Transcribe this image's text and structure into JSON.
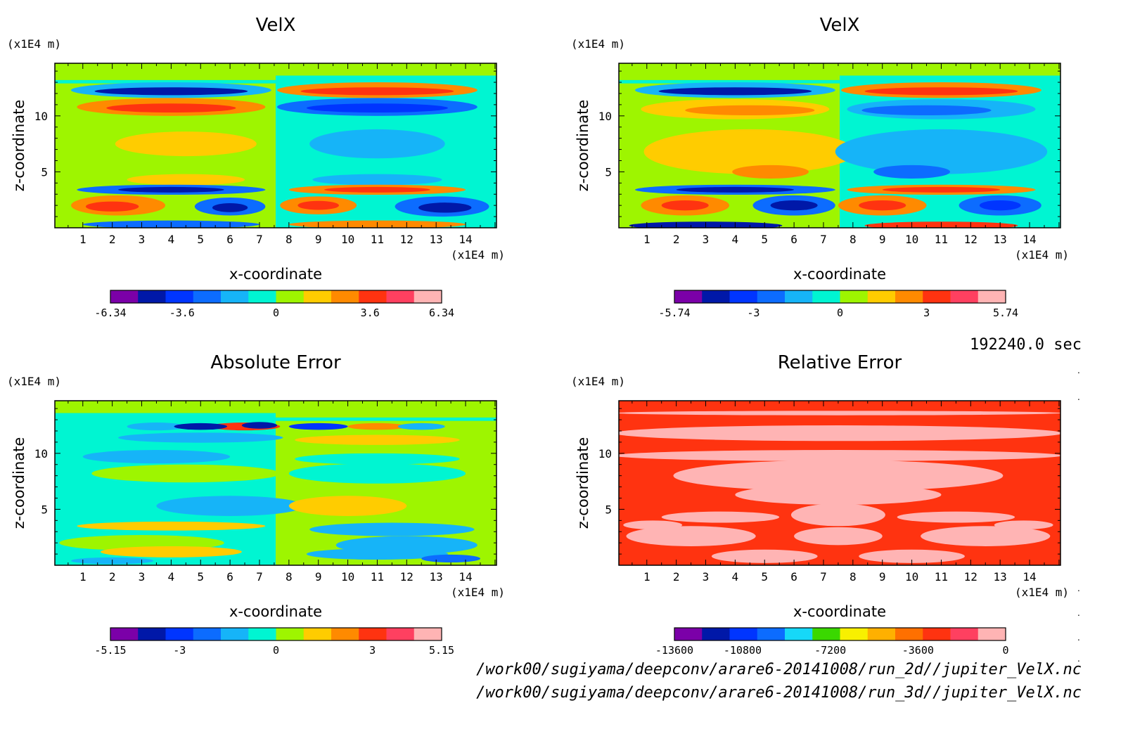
{
  "time_label": "192240.0 sec",
  "files": [
    "/work00/sugiyama/deepconv/arare6-20141008/run_2d//jupiter_VelX.nc",
    "/work00/sugiyama/deepconv/arare6-20141008/run_3d//jupiter_VelX.nc"
  ],
  "chart_data": [
    {
      "type": "heatmap",
      "title": "VelX",
      "xlabel": "x-coordinate",
      "ylabel": "z-coordinate",
      "x_unit": "(x1E4 m)",
      "y_unit": "(x1E4 m)",
      "xlim": [
        0.05,
        15.05
      ],
      "ylim": [
        0,
        14.7
      ],
      "x_ticks": [
        1,
        2,
        3,
        4,
        5,
        6,
        7,
        8,
        9,
        10,
        11,
        12,
        13,
        14
      ],
      "y_ticks": [
        5,
        10
      ],
      "colorbar": {
        "colors": [
          "#7b00a8",
          "#0018a8",
          "#0035ff",
          "#0c6cff",
          "#16b4f8",
          "#00f5d2",
          "#9ef500",
          "#ffcc00",
          "#ff8a00",
          "#ff3310",
          "#ff4060",
          "#ffb4b4"
        ],
        "tick_values": [
          -6.34,
          -3.6,
          0,
          3.6,
          6.34
        ],
        "tick_labels": [
          "-6.34",
          "-3.6",
          "0",
          "3.6",
          "6.34"
        ]
      }
    },
    {
      "type": "heatmap",
      "title": "VelX",
      "xlabel": "x-coordinate",
      "ylabel": "z-coordinate",
      "x_unit": "(x1E4 m)",
      "y_unit": "(x1E4 m)",
      "xlim": [
        0.05,
        15.05
      ],
      "ylim": [
        0,
        14.7
      ],
      "x_ticks": [
        1,
        2,
        3,
        4,
        5,
        6,
        7,
        8,
        9,
        10,
        11,
        12,
        13,
        14
      ],
      "y_ticks": [
        5,
        10
      ],
      "colorbar": {
        "colors": [
          "#7b00a8",
          "#0018a8",
          "#0035ff",
          "#0c6cff",
          "#16b4f8",
          "#00f5d2",
          "#9ef500",
          "#ffcc00",
          "#ff8a00",
          "#ff3310",
          "#ff4060",
          "#ffb4b4"
        ],
        "tick_values": [
          -5.74,
          -3,
          0,
          3,
          5.74
        ],
        "tick_labels": [
          "-5.74",
          "-3",
          "0",
          "3",
          "5.74"
        ]
      }
    },
    {
      "type": "heatmap",
      "title": "Absolute Error",
      "xlabel": "x-coordinate",
      "ylabel": "z-coordinate",
      "x_unit": "(x1E4 m)",
      "y_unit": "(x1E4 m)",
      "xlim": [
        0.05,
        15.05
      ],
      "ylim": [
        0,
        14.7
      ],
      "x_ticks": [
        1,
        2,
        3,
        4,
        5,
        6,
        7,
        8,
        9,
        10,
        11,
        12,
        13,
        14
      ],
      "y_ticks": [
        5,
        10
      ],
      "colorbar": {
        "colors": [
          "#7b00a8",
          "#0018a8",
          "#0035ff",
          "#0c6cff",
          "#16b4f8",
          "#00f5d2",
          "#9ef500",
          "#ffcc00",
          "#ff8a00",
          "#ff3310",
          "#ff4060",
          "#ffb4b4"
        ],
        "tick_values": [
          -5.15,
          -3,
          0,
          3,
          5.15
        ],
        "tick_labels": [
          "-5.15",
          "-3",
          "0",
          "3",
          "5.15"
        ]
      }
    },
    {
      "type": "heatmap",
      "title": "Relative Error",
      "xlabel": "x-coordinate",
      "ylabel": "z-coordinate",
      "x_unit": "(x1E4 m)",
      "y_unit": "(x1E4 m)",
      "xlim": [
        0.05,
        15.05
      ],
      "ylim": [
        0,
        14.7
      ],
      "x_ticks": [
        1,
        2,
        3,
        4,
        5,
        6,
        7,
        8,
        9,
        10,
        11,
        12,
        13,
        14
      ],
      "y_ticks": [
        5,
        10
      ],
      "colorbar": {
        "colors": [
          "#7b00a8",
          "#0018a8",
          "#0035ff",
          "#0c6cff",
          "#16d8f8",
          "#3ad800",
          "#f8f000",
          "#ffb000",
          "#ff7000",
          "#ff3310",
          "#ff4060",
          "#ffb4b4"
        ],
        "tick_values": [
          -13600,
          -10800,
          -7200,
          -3600,
          0
        ],
        "tick_labels": [
          "-13600",
          "-10800",
          "-7200",
          "-3600",
          "0"
        ]
      }
    }
  ]
}
